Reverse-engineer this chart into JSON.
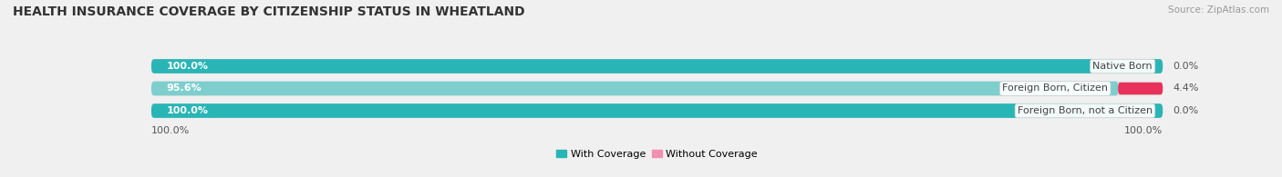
{
  "title": "HEALTH INSURANCE COVERAGE BY CITIZENSHIP STATUS IN WHEATLAND",
  "source": "Source: ZipAtlas.com",
  "categories": [
    "Native Born",
    "Foreign Born, Citizen",
    "Foreign Born, not a Citizen"
  ],
  "with_coverage": [
    100.0,
    95.6,
    100.0
  ],
  "without_coverage": [
    0.0,
    4.4,
    0.0
  ],
  "color_with": [
    "#29b5b5",
    "#7ecece",
    "#29b5b5"
  ],
  "color_without": [
    "#f48faf",
    "#e8315a",
    "#f9b8cc"
  ],
  "color_bg_bar": "#e8e8e8",
  "bar_height": 0.62,
  "bg_color": "#f0f0f0",
  "title_fontsize": 10,
  "label_fontsize": 8,
  "tick_fontsize": 8,
  "source_fontsize": 7.5
}
